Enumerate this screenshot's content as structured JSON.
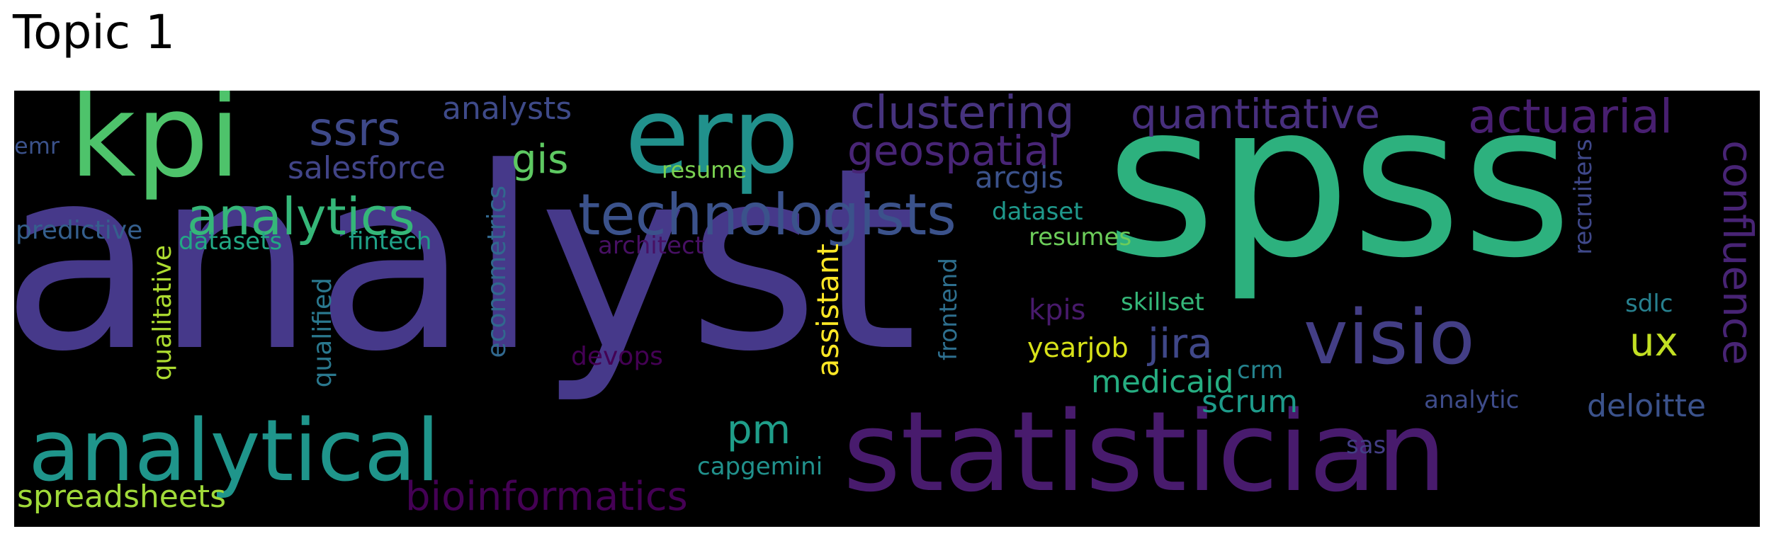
{
  "title": "Topic 1",
  "cloud": {
    "background": "#000000",
    "words": [
      {
        "text": "analyst",
        "color": "#46398a"
      },
      {
        "text": "spss",
        "color": "#2db17e"
      },
      {
        "text": "statistician",
        "color": "#481b6d"
      },
      {
        "text": "kpi",
        "color": "#4ec36b"
      },
      {
        "text": "erp",
        "color": "#21918c"
      },
      {
        "text": "analytical",
        "color": "#1f958b"
      },
      {
        "text": "visio",
        "color": "#433e85"
      },
      {
        "text": "technologists",
        "color": "#3b528b"
      },
      {
        "text": "analytics",
        "color": "#35b779"
      },
      {
        "text": "clustering",
        "color": "#46337e"
      },
      {
        "text": "quantitative",
        "color": "#472f7d"
      },
      {
        "text": "actuarial",
        "color": "#481f70"
      },
      {
        "text": "ssrs",
        "color": "#3e4989"
      },
      {
        "text": "confluence",
        "color": "#482475"
      },
      {
        "text": "geospatial",
        "color": "#482576"
      },
      {
        "text": "bioinformatics",
        "color": "#440154"
      },
      {
        "text": "analysts",
        "color": "#3e4a89"
      },
      {
        "text": "gis",
        "color": "#5ec962"
      },
      {
        "text": "salesforce",
        "color": "#414487"
      },
      {
        "text": "jira",
        "color": "#3f4788"
      },
      {
        "text": "spreadsheets",
        "color": "#a0da39"
      },
      {
        "text": "assistant",
        "color": "#fde725"
      },
      {
        "text": "pm",
        "color": "#1f9e89"
      },
      {
        "text": "ux",
        "color": "#c2df23"
      },
      {
        "text": "medicaid",
        "color": "#26ad81"
      },
      {
        "text": "scrum",
        "color": "#1e9b8a"
      },
      {
        "text": "deloitte",
        "color": "#3b528b"
      },
      {
        "text": "arcgis",
        "color": "#3b528b"
      },
      {
        "text": "recruiters",
        "color": "#3f4889"
      },
      {
        "text": "econometrics",
        "color": "#31688e"
      },
      {
        "text": "qualified",
        "color": "#2a788e"
      },
      {
        "text": "qualitative",
        "color": "#addc30"
      },
      {
        "text": "predictive",
        "color": "#355f8d"
      },
      {
        "text": "datasets",
        "color": "#22a884"
      },
      {
        "text": "fintech",
        "color": "#1fa187"
      },
      {
        "text": "dataset",
        "color": "#1f988b"
      },
      {
        "text": "resumes",
        "color": "#6ccd5a"
      },
      {
        "text": "resume",
        "color": "#7ad151"
      },
      {
        "text": "architect",
        "color": "#471063"
      },
      {
        "text": "frontend",
        "color": "#2e6f8e"
      },
      {
        "text": "kpis",
        "color": "#481a6c"
      },
      {
        "text": "skillset",
        "color": "#35b779"
      },
      {
        "text": "yearjob",
        "color": "#d8e219"
      },
      {
        "text": "crm",
        "color": "#25838e"
      },
      {
        "text": "sdlc",
        "color": "#27808e"
      },
      {
        "text": "analytic",
        "color": "#3e4c8a"
      },
      {
        "text": "devops",
        "color": "#440154"
      },
      {
        "text": "capgemini",
        "color": "#21918c"
      },
      {
        "text": "sas",
        "color": "#433e85"
      },
      {
        "text": "emr",
        "color": "#3b528b"
      }
    ]
  }
}
